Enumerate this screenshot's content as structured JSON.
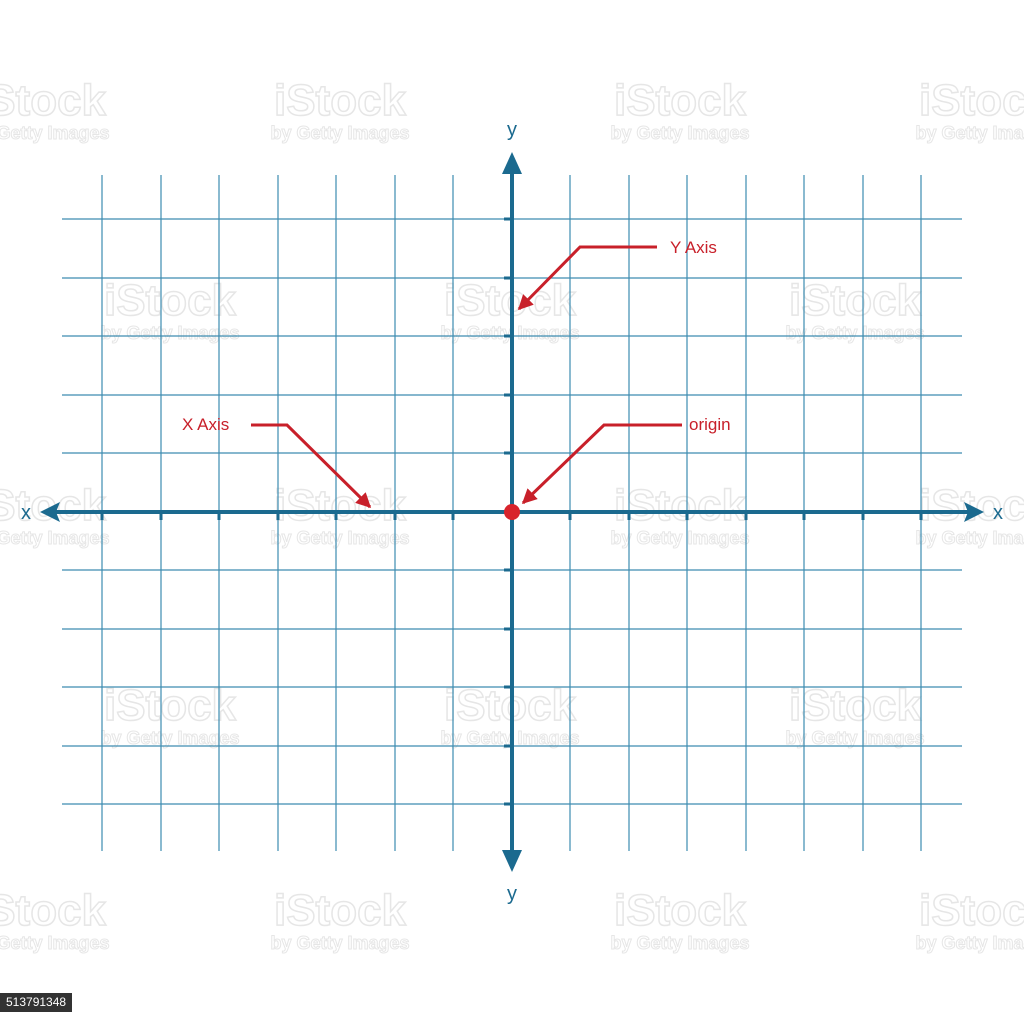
{
  "axes": {
    "x_left_label": "x",
    "x_right_label": "x",
    "y_top_label": "y",
    "y_bottom_label": "y"
  },
  "callouts": {
    "y_axis": "Y Axis",
    "x_axis": "X Axis",
    "origin": "origin"
  },
  "watermark": {
    "brand": "iStock",
    "credit": "by Getty Images"
  },
  "stock_id": "513791348",
  "colors": {
    "grid": "#3d8cb0",
    "axis": "#1b6a8f",
    "callout": "#c8202a",
    "watermark": "#e6e6e6"
  }
}
